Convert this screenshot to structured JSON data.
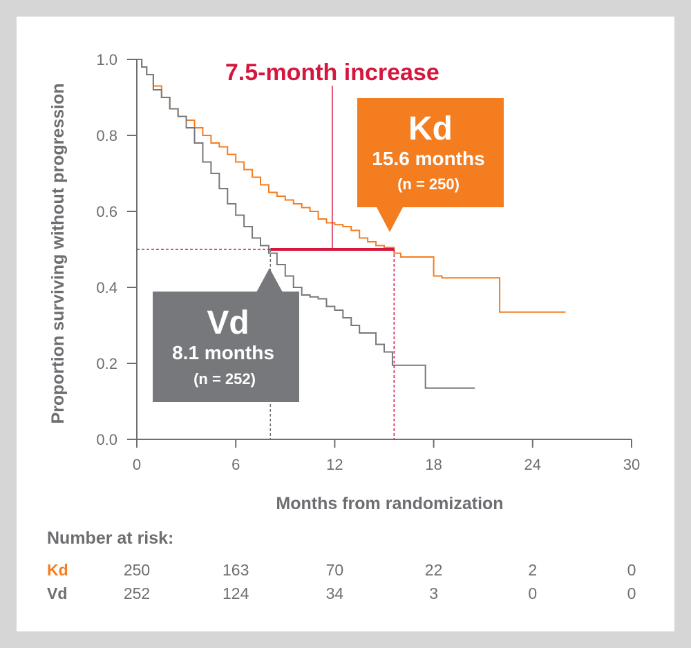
{
  "chart_data": {
    "type": "line",
    "title": "",
    "xlabel": "Months from randomization",
    "ylabel": "Proportion surviving without progression",
    "xlim": [
      0,
      30
    ],
    "ylim": [
      0,
      1.0
    ],
    "x_ticks": [
      "0",
      "6",
      "12",
      "18",
      "24",
      "30"
    ],
    "y_ticks": [
      "0.0",
      "0.2",
      "0.4",
      "0.6",
      "0.8",
      "1.0"
    ],
    "grid": false,
    "series": [
      {
        "name": "Kd",
        "color": "#f47d20",
        "step": true,
        "x": [
          0,
          0.3,
          0.6,
          1.0,
          1.5,
          2.0,
          2.5,
          3.0,
          3.5,
          4.0,
          4.5,
          5.0,
          5.5,
          6.0,
          6.5,
          7.0,
          7.5,
          8.0,
          8.5,
          9.0,
          9.5,
          10.0,
          10.5,
          11.0,
          11.5,
          12.0,
          12.5,
          13.0,
          13.5,
          14.0,
          14.5,
          15.0,
          15.6,
          16.0,
          17.0,
          18.0,
          18.5,
          20.0,
          22.0,
          24.0,
          26.0
        ],
        "y": [
          1.0,
          0.98,
          0.96,
          0.93,
          0.9,
          0.87,
          0.85,
          0.84,
          0.82,
          0.8,
          0.78,
          0.77,
          0.75,
          0.73,
          0.71,
          0.69,
          0.67,
          0.65,
          0.64,
          0.63,
          0.62,
          0.61,
          0.6,
          0.58,
          0.57,
          0.565,
          0.56,
          0.55,
          0.53,
          0.52,
          0.51,
          0.505,
          0.49,
          0.48,
          0.48,
          0.43,
          0.425,
          0.425,
          0.335,
          0.335,
          0.335
        ]
      },
      {
        "name": "Vd",
        "color": "#77787b",
        "step": true,
        "x": [
          0,
          0.3,
          0.6,
          1.0,
          1.5,
          2.0,
          2.5,
          3.0,
          3.5,
          4.0,
          4.5,
          5.0,
          5.5,
          6.0,
          6.5,
          7.0,
          7.5,
          8.0,
          8.5,
          9.0,
          9.5,
          10.0,
          10.5,
          11.0,
          11.5,
          12.0,
          12.5,
          13.0,
          13.5,
          14.0,
          14.5,
          15.0,
          15.5,
          16.0,
          17.0,
          17.5,
          18.0,
          19.0,
          20.5
        ],
        "y": [
          1.0,
          0.98,
          0.96,
          0.92,
          0.9,
          0.87,
          0.85,
          0.82,
          0.78,
          0.73,
          0.7,
          0.66,
          0.62,
          0.59,
          0.56,
          0.53,
          0.51,
          0.49,
          0.46,
          0.43,
          0.4,
          0.38,
          0.375,
          0.37,
          0.35,
          0.34,
          0.32,
          0.3,
          0.28,
          0.28,
          0.25,
          0.23,
          0.195,
          0.195,
          0.195,
          0.135,
          0.135,
          0.135,
          0.135
        ]
      }
    ],
    "median_line": {
      "y": 0.5,
      "vd_median": 8.1,
      "kd_median": 15.6
    },
    "annotations": {
      "increase": "7.5-month increase",
      "kd_box": {
        "name": "Kd",
        "median": "15.6 months",
        "n": "(n = 250)",
        "color": "#f47d20"
      },
      "vd_box": {
        "name": "Vd",
        "median": "8.1 months",
        "n": "(n = 252)",
        "color": "#77787b"
      },
      "highlight_color": "#d4173e"
    }
  },
  "risk_table": {
    "title": "Number at risk:",
    "columns": [
      0,
      6,
      12,
      18,
      24,
      30
    ],
    "rows": [
      {
        "label": "Kd",
        "color": "#f47d20",
        "values": [
          "250",
          "163",
          "70",
          "22",
          "2",
          "0"
        ]
      },
      {
        "label": "Vd",
        "color": "#6d6e71",
        "values": [
          "252",
          "124",
          "34",
          "3",
          "0",
          "0"
        ]
      }
    ]
  }
}
